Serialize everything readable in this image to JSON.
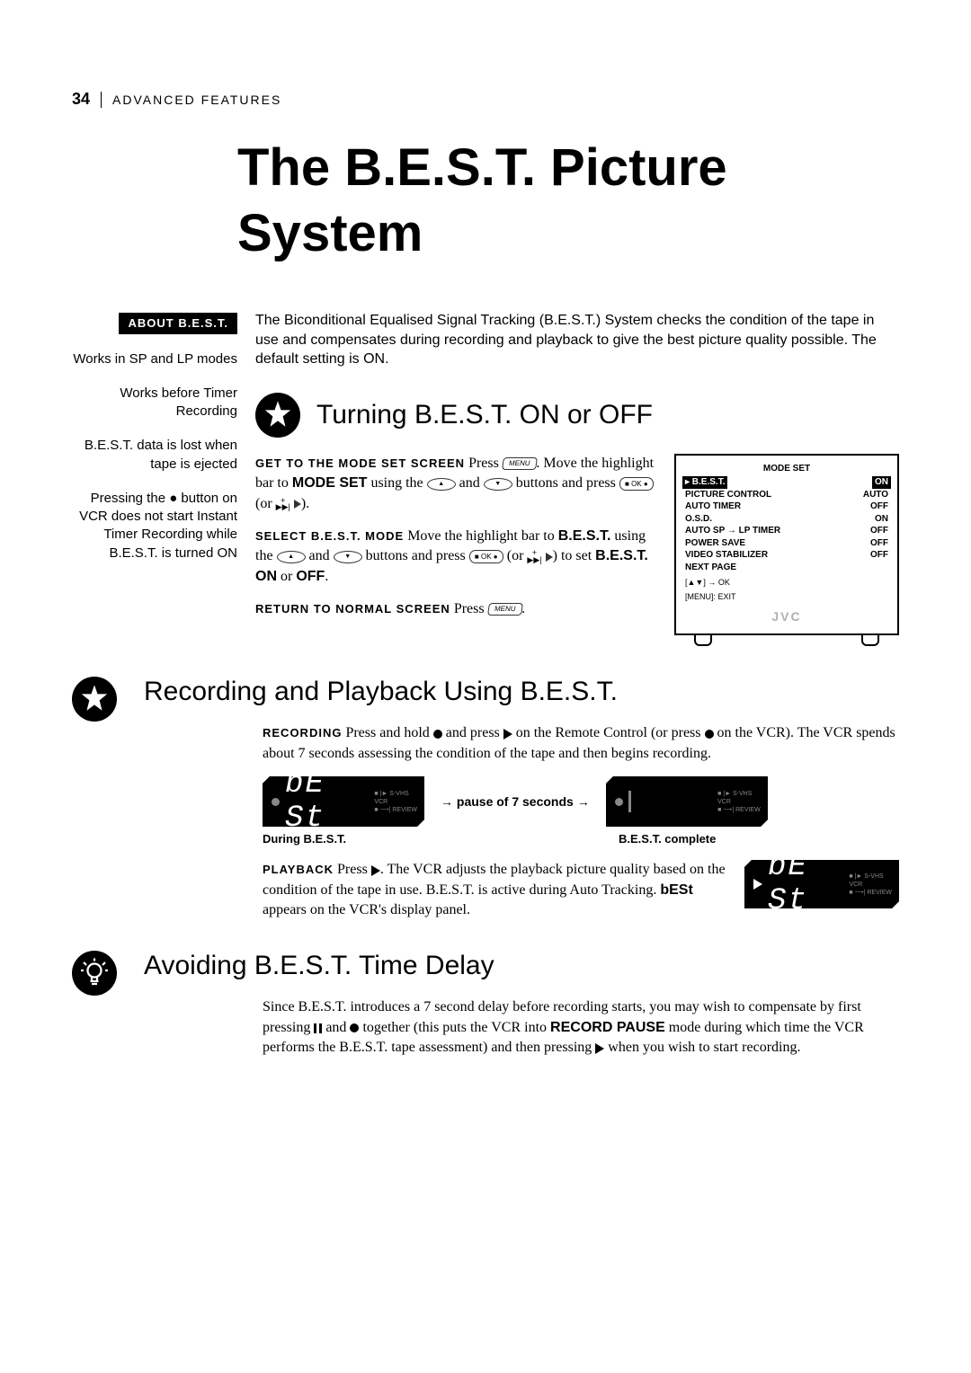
{
  "page_number": "34",
  "section_header": "ADVANCED FEATURES",
  "title": "The B.E.S.T. Picture System",
  "about_label": "ABOUT B.E.S.T.",
  "sidebar_notes": [
    "Works in SP and LP modes",
    "Works before Timer Recording",
    "B.E.S.T. data is lost when tape is ejected",
    "Pressing the ● button on VCR does not start Instant Timer Recording while B.E.S.T. is turned ON"
  ],
  "intro_text": "The Biconditional Equalised Signal Tracking (B.E.S.T.) System checks the condition of the tape in use and compensates during recording and playback to give the best picture quality possible. The default setting is ON.",
  "section1": {
    "heading": "Turning B.E.S.T. ON or OFF",
    "step1_label": "GET TO THE MODE SET SCREEN",
    "step1_a": "Press ",
    "step1_b": ". Move the highlight bar to ",
    "step1_mode": "MODE SET",
    "step1_c": " using the ",
    "step1_d": " and ",
    "step1_e": " buttons and press ",
    "step1_f": " (or ",
    "step1_g": ").",
    "step2_label": "SELECT B.E.S.T. MODE",
    "step2_a": "Move the highlight bar to ",
    "step2_best": "B.E.S.T.",
    "step2_b": " using the ",
    "step2_c": " and ",
    "step2_d": " buttons and press ",
    "step2_e": " (or ",
    "step2_f": ") to set ",
    "step2_on": "B.E.S.T. ON",
    "step2_or": " or ",
    "step2_off": "OFF",
    "step2_g": ".",
    "step3_label": "RETURN TO NORMAL SCREEN",
    "step3_a": "Press ",
    "step3_b": "."
  },
  "tv_menu": {
    "title": "MODE SET",
    "rows": [
      {
        "label": "B.E.S.T.",
        "value": "ON",
        "hl": true,
        "cursor": true
      },
      {
        "label": "PICTURE CONTROL",
        "value": "AUTO"
      },
      {
        "label": "AUTO TIMER",
        "value": "OFF"
      },
      {
        "label": "O.S.D.",
        "value": "ON"
      },
      {
        "label": "AUTO SP → LP TIMER",
        "value": "OFF"
      },
      {
        "label": "POWER SAVE",
        "value": "OFF"
      },
      {
        "label": "VIDEO STABILIZER",
        "value": "OFF"
      },
      {
        "label": "NEXT PAGE",
        "value": ""
      }
    ],
    "hint1": "[▲▼] → OK",
    "hint2": "[MENU]: EXIT",
    "brand": "JVC"
  },
  "section2": {
    "heading": "Recording and Playback Using B.E.S.T.",
    "rec_label": "RECORDING",
    "rec_a": "Press and hold ",
    "rec_b": " and press ",
    "rec_c": " on the Remote Control (or press ",
    "rec_d": " on the VCR). The VCR spends about 7 seconds assessing the condition of the tape and then begins recording.",
    "pause_text": "→ pause of 7 seconds →",
    "cap_during": "During B.E.S.T.",
    "cap_complete": "B.E.S.T. complete",
    "pb_label": "PLAYBACK",
    "pb_a": "Press ",
    "pb_b": ". The VCR adjusts the playback picture quality based on the condition of the tape in use. B.E.S.T. is active during Auto Tracking. ",
    "pb_best": "bESt",
    "pb_c": " appears on the VCR's display panel."
  },
  "vcr_display": {
    "text": "bE St",
    "side1": "■ |► S-VHS",
    "side2": "VCR",
    "side3": "■ ⟶| REVIEW"
  },
  "section3": {
    "heading": "Avoiding B.E.S.T. Time Delay",
    "a": "Since B.E.S.T. introduces a 7 second delay before recording starts, you may wish to compensate by first pressing ",
    "b": " and ",
    "c": " together (this puts the VCR into ",
    "mode": "RECORD PAUSE",
    "d": " mode during which time the VCR performs the B.E.S.T. tape assessment) and then pressing ",
    "e": " when you wish to start recording."
  },
  "colors": {
    "accent": "#000000",
    "dim": "#888888",
    "brand": "#b0b0b0"
  }
}
